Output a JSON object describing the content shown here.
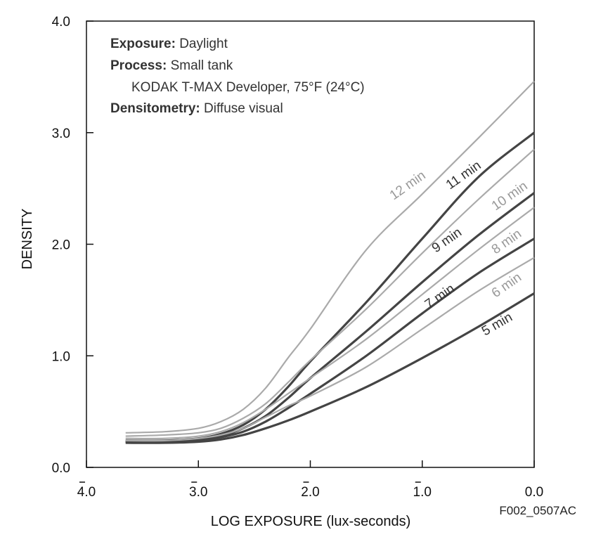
{
  "chart_data": {
    "type": "line",
    "title": "",
    "xlabel": "LOG EXPOSURE (lux-seconds)",
    "ylabel": "DENSITY",
    "xlim": [
      -4.0,
      0.0
    ],
    "ylim": [
      0.0,
      4.0
    ],
    "grid": false,
    "x_ticks": [
      -4.0,
      -3.0,
      -2.0,
      -1.0,
      0.0
    ],
    "x_tick_labels": [
      "4.0",
      "3.0",
      "2.0",
      "1.0",
      "0.0"
    ],
    "y_ticks": [
      0.0,
      1.0,
      2.0,
      3.0,
      4.0
    ],
    "y_tick_labels": [
      "0.0",
      "1.0",
      "2.0",
      "3.0",
      "4.0"
    ],
    "annotations": {
      "exposure_label": "Exposure:",
      "exposure_value": "Daylight",
      "process_label": "Process:",
      "process_value": "Small tank",
      "developer": "KODAK T-MAX Developer, 75°F (24°C)",
      "densitometry_label": "Densitometry:",
      "densitometry_value": "Diffuse visual",
      "figure_id": "F002_0507AC"
    },
    "x": [
      -3.65,
      -3.3,
      -3.0,
      -2.8,
      -2.6,
      -2.4,
      -2.2,
      -2.0,
      -1.5,
      -1.0,
      -0.5,
      0.0
    ],
    "series": [
      {
        "name": "12 min",
        "color": "#aaaaaa",
        "values": [
          0.31,
          0.32,
          0.35,
          0.41,
          0.52,
          0.71,
          0.98,
          1.24,
          1.95,
          2.45,
          2.95,
          3.46
        ]
      },
      {
        "name": "11 min",
        "color": "#444444",
        "values": [
          0.24,
          0.24,
          0.26,
          0.3,
          0.38,
          0.52,
          0.72,
          0.95,
          1.48,
          2.05,
          2.6,
          3.0
        ]
      },
      {
        "name": "10 min",
        "color": "#aaaaaa",
        "values": [
          0.28,
          0.29,
          0.31,
          0.35,
          0.44,
          0.57,
          0.76,
          0.96,
          1.42,
          1.92,
          2.4,
          2.85
        ]
      },
      {
        "name": "9 min",
        "color": "#444444",
        "values": [
          0.23,
          0.23,
          0.25,
          0.28,
          0.35,
          0.46,
          0.62,
          0.8,
          1.22,
          1.66,
          2.08,
          2.46
        ]
      },
      {
        "name": "8 min",
        "color": "#aaaaaa",
        "values": [
          0.26,
          0.26,
          0.28,
          0.32,
          0.4,
          0.52,
          0.66,
          0.8,
          1.15,
          1.55,
          1.95,
          2.33
        ]
      },
      {
        "name": "7 min",
        "color": "#444444",
        "values": [
          0.23,
          0.23,
          0.24,
          0.27,
          0.32,
          0.41,
          0.53,
          0.66,
          1.0,
          1.38,
          1.74,
          2.05
        ]
      },
      {
        "name": "6 min",
        "color": "#aaaaaa",
        "values": [
          0.24,
          0.24,
          0.26,
          0.29,
          0.35,
          0.45,
          0.55,
          0.64,
          0.9,
          1.24,
          1.58,
          1.88
        ]
      },
      {
        "name": "5 min",
        "color": "#444444",
        "values": [
          0.22,
          0.22,
          0.23,
          0.25,
          0.29,
          0.35,
          0.42,
          0.5,
          0.72,
          0.98,
          1.26,
          1.56
        ]
      }
    ]
  }
}
